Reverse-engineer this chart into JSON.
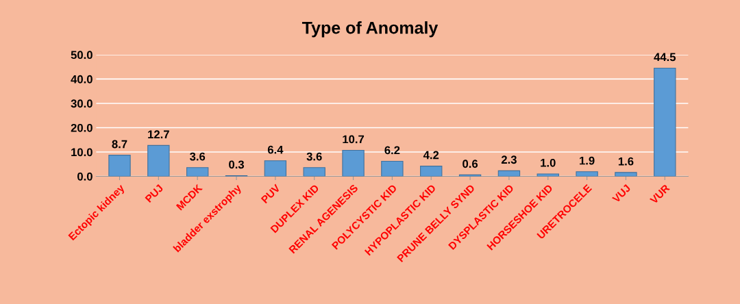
{
  "chart_data": {
    "type": "bar",
    "title": "Type of Anomaly",
    "categories": [
      "Ectopic kidney",
      "PUJ",
      "MCDK",
      "bladder exstrophy",
      "PUV",
      "DUPLEX KID",
      "RENAL AGENESIS",
      "POLYCYSTIC KID",
      "HYPOPLASTIC KID",
      "PRUNE BELLY SYND",
      "DYSPLASTIC KID",
      "HORSESHOE KID",
      "URETROCELE",
      "VUJ",
      "VUR"
    ],
    "values": [
      8.7,
      12.7,
      3.6,
      0.3,
      6.4,
      3.6,
      10.7,
      6.2,
      4.2,
      0.6,
      2.3,
      1.0,
      1.9,
      1.6,
      44.5
    ],
    "value_labels": [
      "8.7",
      "12.7",
      "3.6",
      "0.3",
      "6.4",
      "3.6",
      "10.7",
      "6.2",
      "4.2",
      "0.6",
      "2.3",
      "1.0",
      "1.9",
      "1.6",
      "44.5"
    ],
    "color": "#5b9bd5",
    "ylim": [
      0,
      50
    ],
    "yticks": [
      {
        "value": 0,
        "label": "0.0"
      },
      {
        "value": 10,
        "label": "10.0"
      },
      {
        "value": 20,
        "label": "20.0"
      },
      {
        "value": 30,
        "label": "30.0"
      },
      {
        "value": 40,
        "label": "40.0"
      },
      {
        "value": 50,
        "label": "50.0"
      }
    ],
    "grid": "y",
    "legend": false
  }
}
